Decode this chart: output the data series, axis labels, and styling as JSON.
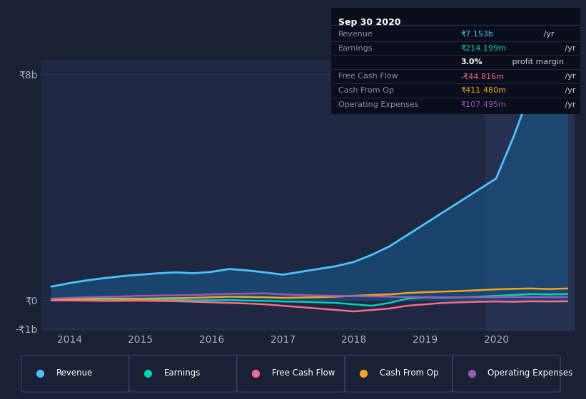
{
  "bg_color": "#1a2035",
  "plot_bg_color": "#1e2840",
  "highlight_bg_color": "#263050",
  "title_box_bg": "#0a0e1a",
  "grid_color": "#2a3555",
  "series": {
    "Revenue": {
      "color": "#4dc3ff",
      "fill_color": "#1a5080",
      "x": [
        2013.75,
        2014.0,
        2014.25,
        2014.5,
        2014.75,
        2015.0,
        2015.25,
        2015.5,
        2015.75,
        2016.0,
        2016.25,
        2016.5,
        2016.75,
        2017.0,
        2017.25,
        2017.5,
        2017.75,
        2018.0,
        2018.25,
        2018.5,
        2018.75,
        2019.0,
        2019.25,
        2019.5,
        2019.75,
        2020.0,
        2020.25,
        2020.5,
        2020.75,
        2021.0
      ],
      "y": [
        480,
        600,
        700,
        780,
        850,
        900,
        950,
        980,
        950,
        1000,
        1100,
        1050,
        980,
        900,
        1000,
        1100,
        1200,
        1350,
        1600,
        1900,
        2300,
        2700,
        3100,
        3500,
        3900,
        4300,
        5800,
        7500,
        6700,
        7153
      ]
    },
    "Earnings": {
      "color": "#00d4b4",
      "x": [
        2013.75,
        2014.0,
        2014.25,
        2014.5,
        2014.75,
        2015.0,
        2015.25,
        2015.5,
        2015.75,
        2016.0,
        2016.25,
        2016.5,
        2016.75,
        2017.0,
        2017.25,
        2017.5,
        2017.75,
        2018.0,
        2018.25,
        2018.5,
        2018.75,
        2019.0,
        2019.25,
        2019.5,
        2019.75,
        2020.0,
        2020.25,
        2020.5,
        2020.75,
        2021.0
      ],
      "y": [
        10,
        20,
        15,
        25,
        20,
        15,
        10,
        5,
        -10,
        -5,
        0,
        -20,
        -30,
        -50,
        -60,
        -80,
        -100,
        -150,
        -200,
        -100,
        50,
        100,
        80,
        100,
        120,
        150,
        180,
        214,
        200,
        214
      ]
    },
    "Free Cash Flow": {
      "color": "#ff6b8a",
      "x": [
        2013.75,
        2014.0,
        2014.25,
        2014.5,
        2014.75,
        2015.0,
        2015.25,
        2015.5,
        2015.75,
        2016.0,
        2016.25,
        2016.5,
        2016.75,
        2017.0,
        2017.25,
        2017.5,
        2017.75,
        2018.0,
        2018.25,
        2018.5,
        2018.75,
        2019.0,
        2019.25,
        2019.5,
        2019.75,
        2020.0,
        2020.25,
        2020.5,
        2020.75,
        2021.0
      ],
      "y": [
        -10,
        -15,
        -20,
        -30,
        -25,
        -20,
        -30,
        -40,
        -60,
        -80,
        -100,
        -120,
        -150,
        -200,
        -250,
        -300,
        -350,
        -400,
        -350,
        -300,
        -200,
        -150,
        -100,
        -80,
        -60,
        -50,
        -60,
        -44,
        -50,
        -44
      ]
    },
    "Cash From Op": {
      "color": "#f5a623",
      "x": [
        2013.75,
        2014.0,
        2014.25,
        2014.5,
        2014.75,
        2015.0,
        2015.25,
        2015.5,
        2015.75,
        2016.0,
        2016.25,
        2016.5,
        2016.75,
        2017.0,
        2017.25,
        2017.5,
        2017.75,
        2018.0,
        2018.25,
        2018.5,
        2018.75,
        2019.0,
        2019.25,
        2019.5,
        2019.75,
        2020.0,
        2020.25,
        2020.5,
        2020.75,
        2021.0
      ],
      "y": [
        30,
        40,
        50,
        60,
        55,
        50,
        60,
        70,
        80,
        100,
        120,
        110,
        100,
        80,
        90,
        100,
        120,
        150,
        180,
        200,
        250,
        280,
        300,
        320,
        350,
        380,
        400,
        411,
        390,
        411
      ]
    },
    "Operating Expenses": {
      "color": "#9b59b6",
      "x": [
        2013.75,
        2014.0,
        2014.25,
        2014.5,
        2014.75,
        2015.0,
        2015.25,
        2015.5,
        2015.75,
        2016.0,
        2016.25,
        2016.5,
        2016.75,
        2017.0,
        2017.25,
        2017.5,
        2017.75,
        2018.0,
        2018.25,
        2018.5,
        2018.75,
        2019.0,
        2019.25,
        2019.5,
        2019.75,
        2020.0,
        2020.25,
        2020.5,
        2020.75,
        2021.0
      ],
      "y": [
        50,
        80,
        100,
        120,
        130,
        150,
        160,
        170,
        180,
        200,
        220,
        230,
        240,
        200,
        180,
        160,
        150,
        140,
        130,
        120,
        110,
        105,
        100,
        100,
        100,
        105,
        108,
        107,
        106,
        107
      ]
    }
  },
  "highlight_start": 2019.85,
  "highlight_end": 2021.1,
  "ylim": [
    -1100,
    8500
  ],
  "xlim": [
    2013.6,
    2021.1
  ],
  "yticks": [
    -1000,
    0,
    8000
  ],
  "ytick_labels": [
    "-₹1b",
    "₹0",
    "₹8b"
  ],
  "xticks": [
    2014,
    2015,
    2016,
    2017,
    2018,
    2019,
    2020
  ],
  "xtick_labels": [
    "2014",
    "2015",
    "2016",
    "2017",
    "2018",
    "2019",
    "2020"
  ],
  "info_box": {
    "title": "Sep 30 2020",
    "rows": [
      {
        "label": "Revenue",
        "value": "₹7.153b",
        "unit": " /yr",
        "value_color": "#4dc3ff",
        "bold": false
      },
      {
        "label": "Earnings",
        "value": "₹214.199m",
        "unit": " /yr",
        "value_color": "#00d4b4",
        "bold": false
      },
      {
        "label": "",
        "value": "3.0%",
        "unit": " profit margin",
        "value_color": "#ffffff",
        "bold": true
      },
      {
        "label": "Free Cash Flow",
        "value": "-₹44.816m",
        "unit": " /yr",
        "value_color": "#ff6b8a",
        "bold": false
      },
      {
        "label": "Cash From Op",
        "value": "₹411.480m",
        "unit": " /yr",
        "value_color": "#f5a623",
        "bold": false
      },
      {
        "label": "Operating Expenses",
        "value": "₹107.495m",
        "unit": " /yr",
        "value_color": "#9b59b6",
        "bold": false
      }
    ]
  },
  "legend_items": [
    {
      "label": "Revenue",
      "color": "#4dc3ff"
    },
    {
      "label": "Earnings",
      "color": "#00d4b4"
    },
    {
      "label": "Free Cash Flow",
      "color": "#ff6b8a"
    },
    {
      "label": "Cash From Op",
      "color": "#f5a623"
    },
    {
      "label": "Operating Expenses",
      "color": "#9b59b6"
    }
  ]
}
